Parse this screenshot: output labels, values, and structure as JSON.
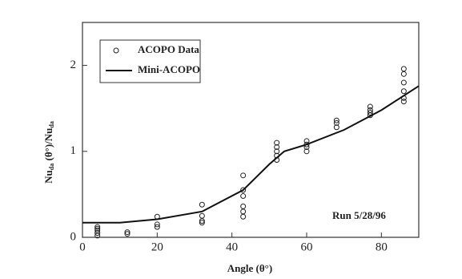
{
  "chart_data": {
    "type": "scatter",
    "x_label": "Angle (θ°)",
    "y_label_parts": [
      "Nu",
      "da",
      " (θ°)/Nu",
      "da"
    ],
    "annotation": "Run  5/28/96",
    "xlim": [
      0,
      90
    ],
    "xticks": [
      0,
      20,
      40,
      60,
      80
    ],
    "ylim": [
      0,
      2.5
    ],
    "yticks": [
      0,
      1,
      2
    ],
    "series": [
      {
        "name": "ACOPO Data",
        "type": "scatter",
        "color": "#222222",
        "x": [
          4,
          4,
          4,
          4,
          4,
          12,
          12,
          20,
          20,
          20,
          32,
          32,
          32,
          32,
          43,
          43,
          43,
          43,
          43,
          43,
          52,
          52,
          52,
          52,
          52,
          60,
          60,
          60,
          60,
          68,
          68,
          68,
          77,
          77,
          77,
          77,
          86,
          86,
          86,
          86,
          86,
          86
        ],
        "values": [
          0.02,
          0.05,
          0.08,
          0.1,
          0.12,
          0.04,
          0.06,
          0.12,
          0.15,
          0.24,
          0.17,
          0.19,
          0.25,
          0.38,
          0.24,
          0.3,
          0.36,
          0.48,
          0.55,
          0.72,
          0.9,
          0.95,
          1.0,
          1.05,
          1.1,
          1.0,
          1.05,
          1.08,
          1.12,
          1.28,
          1.33,
          1.36,
          1.42,
          1.45,
          1.48,
          1.52,
          1.58,
          1.62,
          1.7,
          1.8,
          1.9,
          1.96
        ]
      },
      {
        "name": "Mini-ACOPO",
        "type": "line",
        "color": "#111111",
        "x": [
          0,
          10,
          20,
          32,
          43,
          50,
          54,
          60,
          70,
          80,
          90
        ],
        "values": [
          0.17,
          0.17,
          0.21,
          0.3,
          0.55,
          0.85,
          1.0,
          1.08,
          1.25,
          1.48,
          1.76
        ]
      }
    ]
  }
}
